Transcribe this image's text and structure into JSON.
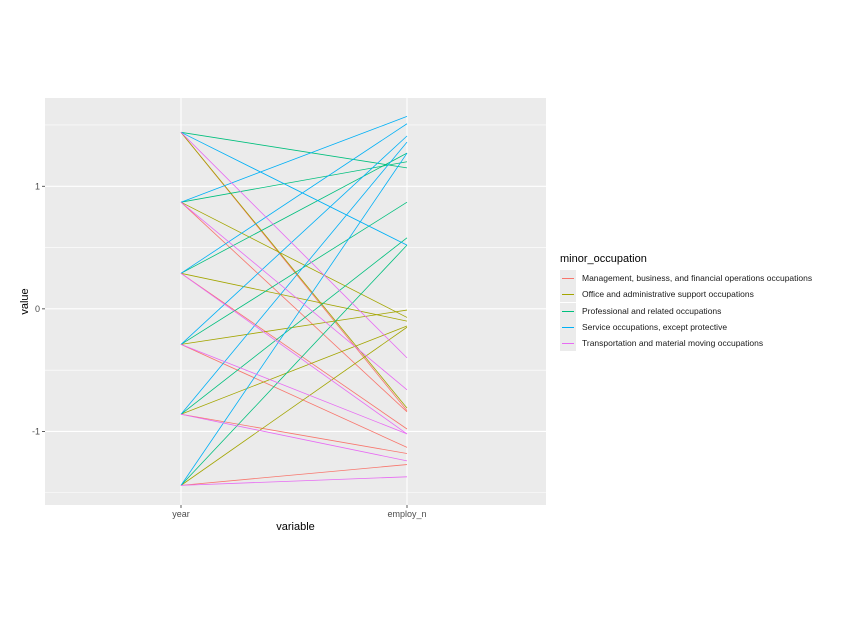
{
  "chart_data": {
    "type": "line",
    "xlabel": "variable",
    "ylabel": "value",
    "categories": [
      "year",
      "employ_n"
    ],
    "ylim": [
      -1.6,
      1.72
    ],
    "yticks": [
      -1,
      0,
      1
    ],
    "grid": true,
    "legend": {
      "title": "minor_occupation",
      "placement": "right"
    },
    "series": [
      {
        "name": "Management, business, and financial operations occupations",
        "color": "#F8766D",
        "lines": [
          [
            1.44,
            -0.83
          ],
          [
            0.87,
            -0.84
          ],
          [
            0.29,
            -0.98
          ],
          [
            -0.29,
            -1.13
          ],
          [
            -0.86,
            -1.18
          ],
          [
            -1.44,
            -1.27
          ]
        ]
      },
      {
        "name": "Office and administrative support occupations",
        "color": "#A3A500",
        "lines": [
          [
            1.44,
            -0.81
          ],
          [
            0.87,
            -0.07
          ],
          [
            0.29,
            -0.1
          ],
          [
            -0.29,
            -0.01
          ],
          [
            -0.86,
            -0.14
          ],
          [
            -1.44,
            -0.15
          ]
        ]
      },
      {
        "name": "Professional and related occupations",
        "color": "#00BF7D",
        "lines": [
          [
            1.44,
            1.15
          ],
          [
            0.87,
            1.2
          ],
          [
            0.29,
            1.27
          ],
          [
            -0.29,
            0.87
          ],
          [
            -0.86,
            0.58
          ],
          [
            -1.44,
            0.52
          ]
        ]
      },
      {
        "name": "Service occupations, except protective",
        "color": "#00B0F6",
        "lines": [
          [
            1.44,
            0.52
          ],
          [
            0.87,
            1.57
          ],
          [
            0.29,
            1.51
          ],
          [
            -0.29,
            1.41
          ],
          [
            -0.86,
            1.36
          ],
          [
            -1.44,
            1.27
          ]
        ]
      },
      {
        "name": "Transportation and material moving occupations",
        "color": "#E76BF3",
        "lines": [
          [
            1.44,
            -0.4
          ],
          [
            0.87,
            -0.66
          ],
          [
            0.29,
            -1.02
          ],
          [
            -0.29,
            -1.02
          ],
          [
            -0.86,
            -1.24
          ],
          [
            -1.44,
            -1.37
          ]
        ]
      }
    ]
  }
}
